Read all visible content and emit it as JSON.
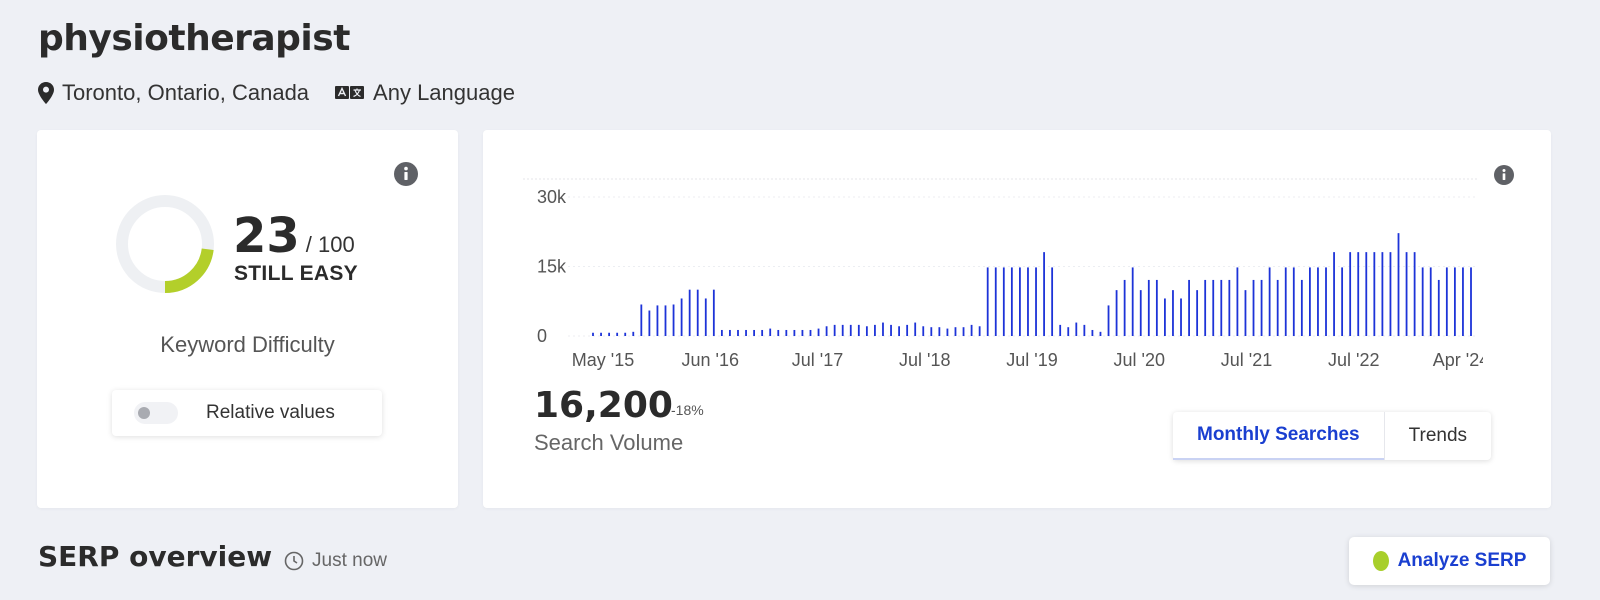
{
  "header": {
    "keyword": "physiotherapist",
    "location": "Toronto, Ontario, Canada",
    "language": "Any Language"
  },
  "keyword_difficulty": {
    "score": 23,
    "max": "/ 100",
    "status": "STILL EASY",
    "label": "Keyword Difficulty",
    "score_color": "#b3cf2a",
    "toggle_label": "Relative values",
    "toggle_on": false
  },
  "search_volume": {
    "value": "16,200",
    "change": "-18%",
    "label": "Search Volume",
    "tabs": [
      "Monthly Searches",
      "Trends"
    ],
    "active_tab": 0
  },
  "serp": {
    "title": "SERP overview",
    "time": "Just now",
    "analyze_label": "Analyze SERP",
    "analyze_dot_color": "#a8cf2b"
  },
  "colors": {
    "accent": "#1a3fd0",
    "bar": "#1d33d8"
  },
  "icons": [
    "map-pin-icon",
    "language-icon",
    "info-icon",
    "clock-icon"
  ],
  "chart_data": {
    "type": "bar",
    "xlabel": "",
    "ylabel": "",
    "ylim": [
      0,
      30000
    ],
    "y_ticks": [
      {
        "label": "0",
        "value": 0
      },
      {
        "label": "15k",
        "value": 15000
      },
      {
        "label": "30k",
        "value": 30000
      }
    ],
    "x_tick_labels": [
      "May '15",
      "Jun '16",
      "Jul '17",
      "Jul '18",
      "Jul '19",
      "Jul '20",
      "Jul '21",
      "Jul '22",
      "Apr '24"
    ],
    "values": [
      700,
      700,
      700,
      700,
      700,
      900,
      6800,
      5500,
      6600,
      6600,
      6800,
      8100,
      10000,
      10000,
      8100,
      10000,
      1300,
      1300,
      1300,
      1300,
      1300,
      1300,
      1600,
      1300,
      1300,
      1300,
      1300,
      1300,
      1600,
      2100,
      2400,
      2400,
      2400,
      2400,
      2100,
      2400,
      2900,
      2400,
      2100,
      2400,
      2900,
      2100,
      1900,
      1900,
      1600,
      1900,
      1900,
      2400,
      2100,
      14800,
      14800,
      14800,
      14800,
      14800,
      14800,
      14800,
      18100,
      14800,
      2400,
      1900,
      2900,
      2400,
      1300,
      900,
      6600,
      9900,
      12100,
      14800,
      9900,
      12100,
      12100,
      8100,
      9900,
      8100,
      12100,
      9900,
      12100,
      12100,
      12100,
      12100,
      14800,
      9900,
      12100,
      12100,
      14800,
      12100,
      14800,
      14800,
      12100,
      14800,
      14800,
      14800,
      18100,
      14800,
      18100,
      18100,
      18100,
      18100,
      18100,
      18100,
      22200,
      18100,
      18100,
      14800,
      14800,
      12100,
      14800,
      14800,
      14800,
      14800
    ],
    "bar_color": "#1d33d8"
  }
}
